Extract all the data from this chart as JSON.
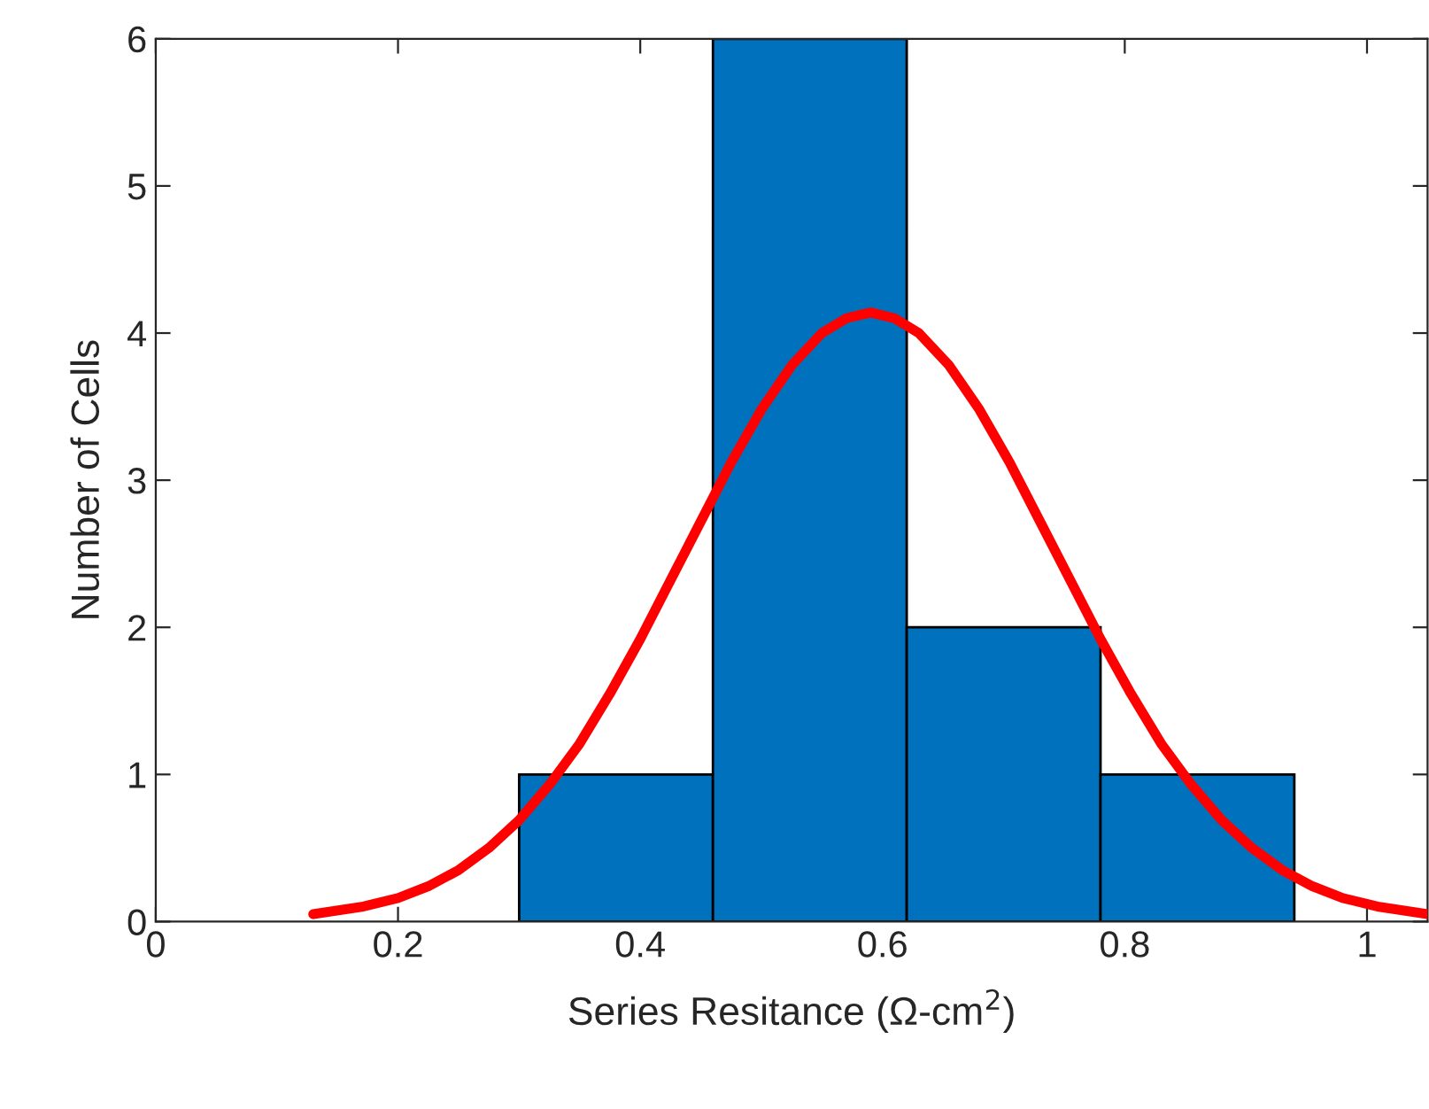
{
  "chart_data": {
    "type": "histogram",
    "xlabel": "Series Resitance (Ω-cm$^{2}$)",
    "ylabel": "Number of Cells",
    "bins": [
      0.3,
      0.46,
      0.62,
      0.78,
      0.94
    ],
    "values": [
      1,
      6,
      2,
      1
    ],
    "color": "#0072bd",
    "series": [
      {
        "type": "line",
        "color": "#ff0000",
        "x": [
          0.13,
          0.17,
          0.2,
          0.225,
          0.25,
          0.275,
          0.3,
          0.325,
          0.35,
          0.375,
          0.4,
          0.425,
          0.45,
          0.475,
          0.5,
          0.525,
          0.55,
          0.57,
          0.59,
          0.61,
          0.63,
          0.655,
          0.68,
          0.705,
          0.73,
          0.755,
          0.78,
          0.805,
          0.83,
          0.855,
          0.88,
          0.905,
          0.93,
          0.955,
          0.98,
          1.01,
          1.05
        ],
        "values": [
          0.05,
          0.1,
          0.16,
          0.24,
          0.35,
          0.5,
          0.69,
          0.93,
          1.21,
          1.55,
          1.92,
          2.32,
          2.72,
          3.12,
          3.48,
          3.78,
          4.0,
          4.1,
          4.14,
          4.1,
          4.0,
          3.78,
          3.48,
          3.12,
          2.72,
          2.32,
          1.92,
          1.55,
          1.21,
          0.93,
          0.69,
          0.5,
          0.35,
          0.24,
          0.16,
          0.1,
          0.05
        ]
      }
    ],
    "xlim": [
      0,
      1.05
    ],
    "xticks": [
      0,
      0.2,
      0.4,
      0.6,
      0.8,
      1
    ],
    "ylim": [
      0,
      6
    ],
    "yticks": [
      0,
      1,
      2,
      3,
      4,
      5,
      6
    ],
    "grid": false
  }
}
